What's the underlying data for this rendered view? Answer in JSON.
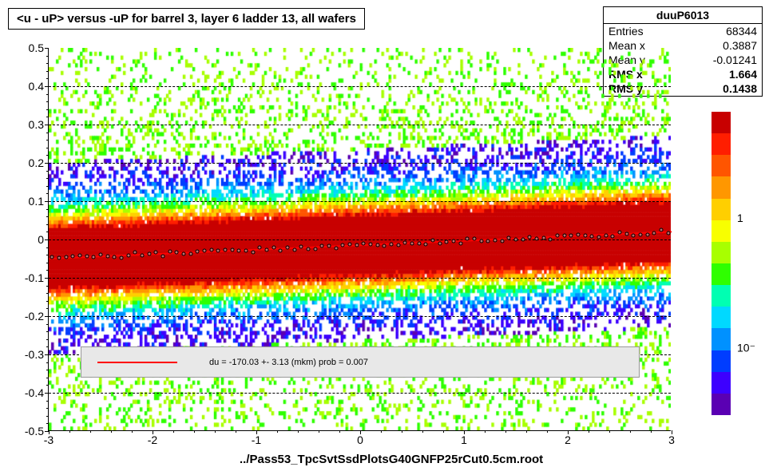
{
  "title": "<u - uP>       versus  -uP for barrel 3, layer 6 ladder 13, all wafers",
  "stats": {
    "name": "duuP6013",
    "rows": [
      {
        "label": "Entries",
        "value": "68344"
      },
      {
        "label": "Mean x",
        "value": "0.3887"
      },
      {
        "label": "Mean y",
        "value": "-0.01241"
      },
      {
        "label": "RMS x",
        "value": "1.664"
      },
      {
        "label": "RMS y",
        "value": "0.1438"
      }
    ]
  },
  "footer": "../Pass53_TpcSvtSsdPlotsG40GNFP25rCut0.5cm.root",
  "chart": {
    "type": "heatmap-scatter",
    "xlim": [
      -3,
      3
    ],
    "ylim": [
      -0.5,
      0.5
    ],
    "xtick_step": 1,
    "ytick_step": 0.1,
    "x_minor_per": 5,
    "y_minor_per": 5,
    "background_color": "#ffffff",
    "grid_color": "#000000",
    "grid_dash": true,
    "heatmap_palette": [
      "#5a00b3",
      "#3d00ff",
      "#003dff",
      "#0091ff",
      "#00d9ff",
      "#00ffb2",
      "#2fff00",
      "#a8ff00",
      "#f8ff00",
      "#ffcf00",
      "#ff9700",
      "#ff5500",
      "#ff1e00",
      "#c80000"
    ],
    "fit_line": {
      "color": "#ff0000",
      "width": 2,
      "y_at_xmin": -0.05,
      "y_at_xmax": 0.02
    },
    "scatter_profile": {
      "description": "mean y per x-bin, roughly linear",
      "points_count": 90,
      "marker_color": "#808080",
      "marker_border": "#000000",
      "marker_size": 5
    },
    "legend": {
      "text": "du = -170.03 +-  3.13 (mkm) prob = 0.007",
      "line_color": "#ff0000",
      "background": "#e8e8e8",
      "y_center": -0.32,
      "height_y": 0.08
    },
    "colorbar": {
      "scale": "log",
      "labels": [
        {
          "text": "1",
          "frac_from_top": 0.35
        },
        {
          "text": "10⁻",
          "frac_from_top": 0.78
        }
      ],
      "palette": [
        "#5a00b3",
        "#3d00ff",
        "#003dff",
        "#0091ff",
        "#00d9ff",
        "#00ffb2",
        "#2fff00",
        "#a8ff00",
        "#f8ff00",
        "#ffcf00",
        "#ff9700",
        "#ff5500",
        "#ff1e00",
        "#c80000"
      ]
    }
  }
}
